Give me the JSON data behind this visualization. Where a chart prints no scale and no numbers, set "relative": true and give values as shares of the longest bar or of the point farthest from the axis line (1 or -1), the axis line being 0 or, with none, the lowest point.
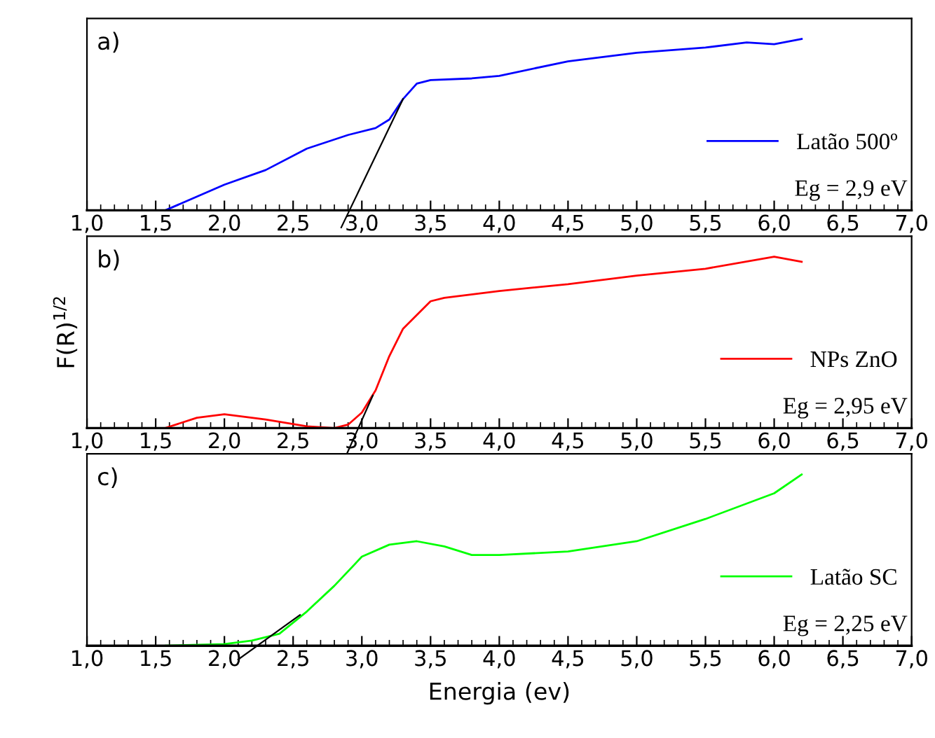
{
  "chart_data": [
    {
      "type": "line",
      "relative": true,
      "annotations": [
        "a)",
        "Eg = 2,9 eV"
      ],
      "legend": "bottom right",
      "grid": false,
      "xlim": [
        1.0,
        7.0
      ],
      "xticks": [
        {
          "value": 1.0,
          "label": "1,0"
        },
        {
          "value": 1.5,
          "label": "1,5"
        },
        {
          "value": 2.0,
          "label": "2,0"
        },
        {
          "value": 2.5,
          "label": "2,5"
        },
        {
          "value": 3.0,
          "label": "3,0"
        },
        {
          "value": 3.5,
          "label": "3,5"
        },
        {
          "value": 4.0,
          "label": "4,0"
        },
        {
          "value": 4.5,
          "label": "4,5"
        },
        {
          "value": 5.0,
          "label": "5,0"
        },
        {
          "value": 5.5,
          "label": "5,5"
        },
        {
          "value": 6.0,
          "label": "6,0"
        },
        {
          "value": 6.5,
          "label": "6,5"
        },
        {
          "value": 7.0,
          "label": "7,0"
        }
      ],
      "series": [
        {
          "name": "Latão 500º",
          "color": "#0000ff",
          "x": [
            1.57,
            2.0,
            2.3,
            2.6,
            2.9,
            3.1,
            3.2,
            3.3,
            3.4,
            3.5,
            3.8,
            4.0,
            4.5,
            5.0,
            5.5,
            5.8,
            6.0,
            6.2
          ],
          "values": [
            0,
            0.15,
            0.235,
            0.36,
            0.44,
            0.48,
            0.53,
            0.65,
            0.74,
            0.76,
            0.77,
            0.785,
            0.87,
            0.92,
            0.95,
            0.98,
            0.97,
            1.0
          ]
        },
        {
          "color": "#000000",
          "x": [
            2.85,
            3.3
          ],
          "values": [
            -0.1,
            0.65
          ]
        }
      ]
    },
    {
      "type": "line",
      "relative": true,
      "ylabel": "F(R)$^{1/2}$",
      "annotations": [
        "b)",
        "Eg = 2,95 eV"
      ],
      "legend": "bottom right",
      "grid": false,
      "xlim": [
        1.0,
        7.0
      ],
      "xticks": [
        {
          "value": 1.0,
          "label": "1,0"
        },
        {
          "value": 1.5,
          "label": "1,5"
        },
        {
          "value": 2.0,
          "label": "2,0"
        },
        {
          "value": 2.5,
          "label": "2,5"
        },
        {
          "value": 3.0,
          "label": "3,0"
        },
        {
          "value": 3.5,
          "label": "3,5"
        },
        {
          "value": 4.0,
          "label": "4,0"
        },
        {
          "value": 4.5,
          "label": "4,5"
        },
        {
          "value": 5.0,
          "label": "5,0"
        },
        {
          "value": 5.5,
          "label": "5,5"
        },
        {
          "value": 6.0,
          "label": "6,0"
        },
        {
          "value": 6.5,
          "label": "6,5"
        },
        {
          "value": 7.0,
          "label": "7,0"
        }
      ],
      "series": [
        {
          "name": "NPs ZnO",
          "color": "#ff0000",
          "x": [
            1.57,
            1.8,
            2.0,
            2.3,
            2.6,
            2.8,
            2.9,
            3.0,
            3.1,
            3.2,
            3.3,
            3.5,
            3.6,
            4.0,
            4.5,
            5.0,
            5.5,
            6.0,
            6.2
          ],
          "values": [
            0,
            0.06,
            0.08,
            0.05,
            0.01,
            0,
            0.02,
            0.09,
            0.22,
            0.42,
            0.58,
            0.74,
            0.76,
            0.8,
            0.84,
            0.89,
            0.93,
            1.0,
            0.97
          ]
        },
        {
          "color": "#000000",
          "x": [
            2.88,
            3.08
          ],
          "values": [
            -0.17,
            0.19
          ]
        }
      ]
    },
    {
      "type": "line",
      "relative": true,
      "xlabel": "Energia (ev)",
      "annotations": [
        "c)",
        "Eg = 2,25 eV"
      ],
      "legend": "bottom right",
      "grid": false,
      "xlim": [
        1.0,
        7.0
      ],
      "xticks": [
        {
          "value": 1.0,
          "label": "1,0"
        },
        {
          "value": 1.5,
          "label": "1,5"
        },
        {
          "value": 2.0,
          "label": "2,0"
        },
        {
          "value": 2.5,
          "label": "2,5"
        },
        {
          "value": 3.0,
          "label": "3,0"
        },
        {
          "value": 3.5,
          "label": "3,5"
        },
        {
          "value": 4.0,
          "label": "4,0"
        },
        {
          "value": 4.5,
          "label": "4,5"
        },
        {
          "value": 5.0,
          "label": "5,0"
        },
        {
          "value": 5.5,
          "label": "5,5"
        },
        {
          "value": 6.0,
          "label": "6,0"
        },
        {
          "value": 6.5,
          "label": "6,5"
        },
        {
          "value": 7.0,
          "label": "7,0"
        }
      ],
      "series": [
        {
          "name": "Latão SC",
          "color": "#00ff00",
          "x": [
            1.57,
            2.0,
            2.2,
            2.4,
            2.6,
            2.8,
            3.0,
            3.2,
            3.4,
            3.6,
            3.8,
            4.0,
            4.5,
            5.0,
            5.5,
            6.0,
            6.2
          ],
          "values": [
            0,
            0.01,
            0.03,
            0.07,
            0.2,
            0.35,
            0.52,
            0.59,
            0.61,
            0.58,
            0.53,
            0.53,
            0.55,
            0.61,
            0.74,
            0.89,
            1.0
          ]
        },
        {
          "color": "#000000",
          "x": [
            2.1,
            2.55
          ],
          "values": [
            -0.08,
            0.18
          ]
        }
      ]
    }
  ]
}
